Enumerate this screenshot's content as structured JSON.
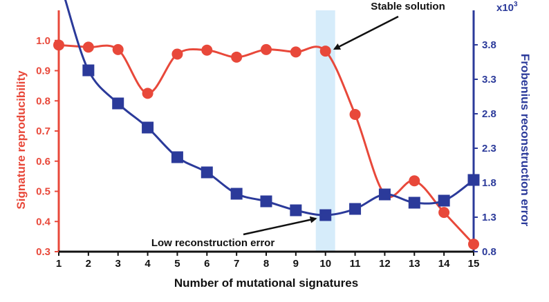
{
  "chart_data": {
    "type": "line",
    "title": "",
    "xlabel": "Number of mutational signatures",
    "x": [
      1,
      2,
      3,
      4,
      5,
      6,
      7,
      8,
      9,
      10,
      11,
      12,
      13,
      14,
      15
    ],
    "x_ticks": [
      "1",
      "2",
      "3",
      "4",
      "5",
      "6",
      "7",
      "8",
      "9",
      "10",
      "11",
      "12",
      "13",
      "14",
      "15"
    ],
    "left_axis": {
      "label": "Signature reproducibility",
      "ylim": [
        0.3,
        1.1
      ],
      "ticks": [
        "0.3",
        "0.4",
        "0.5",
        "0.6",
        "0.7",
        "0.8",
        "0.9",
        "1.0"
      ],
      "color": "#e8483a"
    },
    "right_axis": {
      "label": "Frobenius reconstruction error",
      "multiplier": "x10",
      "multiplier_exp": "3",
      "ylim": [
        0.8,
        4.3
      ],
      "ticks": [
        "0.8",
        "1.3",
        "1.8",
        "2.3",
        "2.8",
        "3.3",
        "3.8"
      ],
      "color": "#2b3a9a"
    },
    "series": [
      {
        "axis": "left",
        "marker": "circle",
        "color": "#e8483a",
        "values": [
          0.985,
          0.978,
          0.97,
          0.825,
          0.955,
          0.968,
          0.945,
          0.97,
          0.962,
          0.965,
          0.755,
          0.49,
          0.535,
          0.43,
          0.325
        ]
      },
      {
        "axis": "right",
        "marker": "square",
        "color": "#2b3a9a",
        "values": [
          null,
          3.43,
          2.95,
          2.6,
          2.17,
          1.95,
          1.64,
          1.53,
          1.4,
          1.33,
          1.42,
          1.63,
          1.51,
          1.54,
          1.84
        ],
        "curve_start": 4.5
      }
    ],
    "highlight": {
      "x": 10,
      "color": "#d6ecfa"
    },
    "annotations": [
      {
        "text": "Stable solution",
        "target_series": 0,
        "target_x": 10
      },
      {
        "text": "Low reconstruction error",
        "target_series": 1,
        "target_x": 10
      }
    ]
  }
}
